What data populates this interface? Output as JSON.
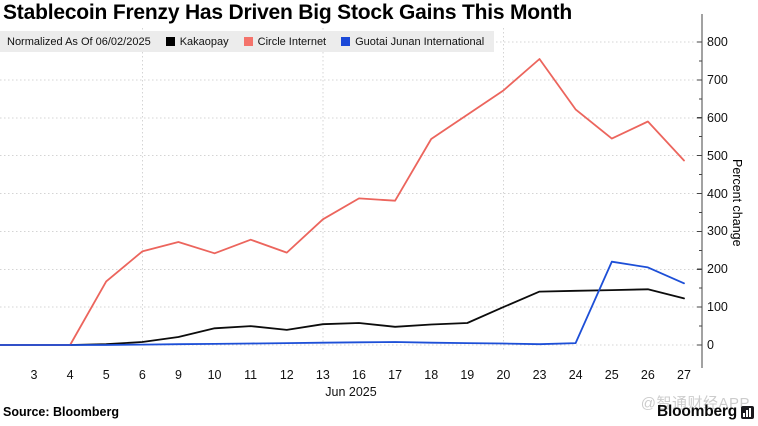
{
  "title": "Stablecoin Frenzy Has Driven Big Stock Gains This Month",
  "legend": {
    "note": "Normalized As Of 06/02/2025",
    "items": [
      {
        "label": "Kakaopay",
        "color": "#000000"
      },
      {
        "label": "Circle Internet",
        "color": "#f4736b"
      },
      {
        "label": "Guotai Junan International",
        "color": "#1b49d8"
      }
    ]
  },
  "footer": {
    "source": "Source: Bloomberg",
    "watermark": "@智通财经APP",
    "brand": "Bloomberg"
  },
  "chart_data": {
    "type": "line",
    "title": "Stablecoin Frenzy Has Driven Big Stock Gains This Month",
    "subtitle": "Normalized As Of 06/02/2025",
    "x_axis": {
      "label": "Jun 2025",
      "tick_labels": [
        "3",
        "4",
        "5",
        "6",
        "9",
        "10",
        "11",
        "12",
        "13",
        "16",
        "17",
        "18",
        "19",
        "20",
        "23",
        "24",
        "25",
        "26",
        "27"
      ]
    },
    "y_axis": {
      "label": "Percent change",
      "ticks": [
        0,
        100,
        200,
        300,
        400,
        500,
        600,
        700,
        800
      ],
      "range": [
        0,
        800
      ],
      "side": "right",
      "minor_tick_step": 50
    },
    "categories": [
      "Jun 2",
      "Jun 3",
      "Jun 4",
      "Jun 5",
      "Jun 6",
      "Jun 9",
      "Jun 10",
      "Jun 11",
      "Jun 12",
      "Jun 13",
      "Jun 16",
      "Jun 17",
      "Jun 18",
      "Jun 19",
      "Jun 20",
      "Jun 23",
      "Jun 24",
      "Jun 25",
      "Jun 26",
      "Jun 27"
    ],
    "series": [
      {
        "name": "Kakaopay",
        "color": "#0c0c0c",
        "values": [
          0,
          0,
          0,
          2,
          8,
          21,
          44,
          50,
          40,
          55,
          58,
          48,
          54,
          58,
          100,
          141,
          143,
          145,
          147,
          123
        ]
      },
      {
        "name": "Circle Internet",
        "color": "#ec655d",
        "values": [
          0,
          0,
          0,
          168,
          247,
          272,
          242,
          278,
          244,
          332,
          387,
          381,
          544,
          608,
          672,
          755,
          622,
          545,
          590,
          487
        ]
      },
      {
        "name": "Guotai Junan International",
        "color": "#1d4fd7",
        "values": [
          0,
          0,
          0,
          0,
          1,
          2,
          3,
          4,
          5,
          6,
          7,
          8,
          6,
          5,
          4,
          2,
          5,
          220,
          205,
          163
        ]
      }
    ],
    "gridlines": {
      "horizontal_every": 100,
      "vertical_at_dates": [
        "6",
        "13",
        "20"
      ],
      "style": "dotted"
    },
    "legend_position": "top",
    "grid": true
  }
}
